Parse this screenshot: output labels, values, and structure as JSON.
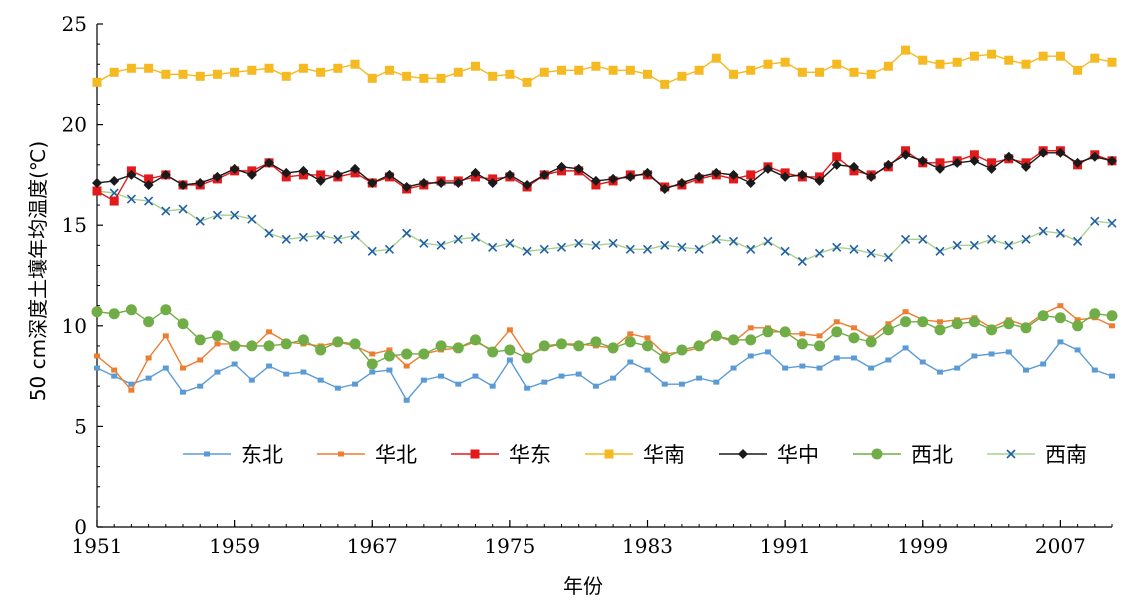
{
  "chart_data": {
    "type": "line",
    "xlabel": "年份",
    "ylabel": "50 cm深度土壤年均温度(℃)",
    "xlim": [
      1951,
      2010
    ],
    "ylim": [
      0,
      25
    ],
    "x_ticks": [
      "1951",
      "1959",
      "1967",
      "1975",
      "1983",
      "1991",
      "1999",
      "2007"
    ],
    "y_ticks": [
      "0",
      "5",
      "10",
      "15",
      "20",
      "25"
    ],
    "grid": false,
    "legend_position": "bottom inside plot",
    "x": [
      1951,
      1952,
      1953,
      1954,
      1955,
      1956,
      1957,
      1958,
      1959,
      1960,
      1961,
      1962,
      1963,
      1964,
      1965,
      1966,
      1967,
      1968,
      1969,
      1970,
      1971,
      1972,
      1973,
      1974,
      1975,
      1976,
      1977,
      1978,
      1979,
      1980,
      1981,
      1982,
      1983,
      1984,
      1985,
      1986,
      1987,
      1988,
      1989,
      1990,
      1991,
      1992,
      1993,
      1994,
      1995,
      1996,
      1997,
      1998,
      1999,
      2000,
      2001,
      2002,
      2003,
      2004,
      2005,
      2006,
      2007,
      2008,
      2009,
      2010
    ],
    "series": [
      {
        "name": "东北",
        "color": "#5b9bd5",
        "marker": "square-small",
        "values": [
          7.9,
          7.5,
          7.1,
          7.4,
          7.9,
          6.7,
          7.0,
          7.7,
          8.1,
          7.3,
          8.0,
          7.6,
          7.7,
          7.3,
          6.9,
          7.1,
          7.7,
          7.8,
          6.3,
          7.3,
          7.5,
          7.1,
          7.5,
          7.0,
          8.3,
          6.9,
          7.2,
          7.5,
          7.6,
          7.0,
          7.4,
          8.2,
          7.8,
          7.1,
          7.1,
          7.4,
          7.2,
          7.9,
          8.5,
          8.7,
          7.9,
          8.0,
          7.9,
          8.4,
          8.4,
          7.9,
          8.3,
          8.9,
          8.2,
          7.7,
          7.9,
          8.5,
          8.6,
          8.7,
          7.8,
          8.1,
          9.2,
          8.8,
          7.8,
          7.5
        ]
      },
      {
        "name": "华北",
        "color": "#ed7d31",
        "marker": "square-small",
        "values": [
          8.5,
          7.8,
          6.8,
          8.4,
          9.5,
          7.9,
          8.3,
          9.1,
          9.1,
          8.9,
          9.7,
          9.2,
          9.1,
          9.0,
          9.2,
          9.0,
          8.6,
          8.8,
          8.0,
          8.6,
          8.8,
          8.9,
          9.2,
          8.8,
          9.8,
          8.5,
          8.9,
          9.1,
          9.1,
          9.0,
          8.9,
          9.6,
          9.4,
          8.6,
          8.7,
          8.9,
          9.5,
          9.2,
          9.9,
          9.9,
          9.6,
          9.6,
          9.5,
          10.2,
          9.9,
          9.4,
          10.1,
          10.7,
          10.3,
          10.2,
          10.3,
          10.4,
          9.9,
          10.3,
          10.0,
          10.6,
          11.0,
          10.3,
          10.4,
          10.0
        ]
      },
      {
        "name": "华东",
        "color": "#e31a1c",
        "marker": "square",
        "values": [
          16.7,
          16.2,
          17.7,
          17.3,
          17.5,
          17.0,
          17.0,
          17.3,
          17.7,
          17.7,
          18.1,
          17.4,
          17.5,
          17.5,
          17.4,
          17.6,
          17.1,
          17.4,
          16.8,
          17.0,
          17.2,
          17.2,
          17.4,
          17.3,
          17.4,
          16.9,
          17.5,
          17.7,
          17.7,
          17.0,
          17.2,
          17.5,
          17.5,
          16.9,
          17.0,
          17.3,
          17.5,
          17.3,
          17.5,
          17.9,
          17.6,
          17.4,
          17.4,
          18.4,
          17.7,
          17.5,
          17.9,
          18.7,
          18.1,
          18.1,
          18.2,
          18.5,
          18.1,
          18.3,
          18.1,
          18.7,
          18.7,
          18.0,
          18.5,
          18.2
        ]
      },
      {
        "name": "华南",
        "color": "#f5b921",
        "marker": "square",
        "values": [
          22.1,
          22.6,
          22.8,
          22.8,
          22.5,
          22.5,
          22.4,
          22.5,
          22.6,
          22.7,
          22.8,
          22.4,
          22.8,
          22.6,
          22.8,
          23.0,
          22.3,
          22.7,
          22.4,
          22.3,
          22.3,
          22.6,
          22.9,
          22.4,
          22.5,
          22.1,
          22.6,
          22.7,
          22.7,
          22.9,
          22.7,
          22.7,
          22.5,
          22.0,
          22.4,
          22.7,
          23.3,
          22.5,
          22.7,
          23.0,
          23.1,
          22.6,
          22.6,
          23.0,
          22.6,
          22.5,
          22.9,
          23.7,
          23.2,
          23.0,
          23.1,
          23.4,
          23.5,
          23.2,
          23.0,
          23.4,
          23.4,
          22.7,
          23.3,
          23.1
        ]
      },
      {
        "name": "华中",
        "color": "#1a1a1a",
        "marker": "diamond",
        "values": [
          17.1,
          17.2,
          17.5,
          17.0,
          17.5,
          17.0,
          17.1,
          17.4,
          17.8,
          17.5,
          18.1,
          17.6,
          17.7,
          17.2,
          17.5,
          17.8,
          17.1,
          17.5,
          16.9,
          17.1,
          17.1,
          17.1,
          17.6,
          17.1,
          17.5,
          17.0,
          17.5,
          17.9,
          17.8,
          17.2,
          17.3,
          17.4,
          17.6,
          16.8,
          17.1,
          17.4,
          17.6,
          17.5,
          17.1,
          17.8,
          17.4,
          17.5,
          17.2,
          18.0,
          17.9,
          17.4,
          18.0,
          18.5,
          18.2,
          17.8,
          18.1,
          18.2,
          17.8,
          18.4,
          17.9,
          18.6,
          18.6,
          18.1,
          18.4,
          18.2
        ]
      },
      {
        "name": "西北",
        "color": "#70ad47",
        "marker": "circle",
        "values": [
          10.7,
          10.6,
          10.8,
          10.2,
          10.8,
          10.1,
          9.3,
          9.5,
          9.0,
          9.0,
          9.0,
          9.1,
          9.3,
          8.8,
          9.2,
          9.1,
          8.1,
          8.5,
          8.6,
          8.6,
          9.0,
          8.9,
          9.3,
          8.7,
          8.8,
          8.4,
          9.0,
          9.1,
          9.0,
          9.2,
          8.9,
          9.2,
          9.0,
          8.4,
          8.8,
          9.0,
          9.5,
          9.3,
          9.3,
          9.7,
          9.7,
          9.1,
          9.0,
          9.7,
          9.4,
          9.2,
          9.8,
          10.2,
          10.2,
          9.8,
          10.1,
          10.2,
          9.8,
          10.1,
          9.9,
          10.5,
          10.4,
          10.0,
          10.6,
          10.5
        ]
      },
      {
        "name": "西南",
        "color": "#1f5fa6",
        "marker": "x",
        "line_color": "#a9d18e",
        "values": [
          16.7,
          16.6,
          16.3,
          16.2,
          15.7,
          15.8,
          15.2,
          15.5,
          15.5,
          15.3,
          14.6,
          14.3,
          14.4,
          14.5,
          14.3,
          14.5,
          13.7,
          13.8,
          14.6,
          14.1,
          14.0,
          14.3,
          14.4,
          13.9,
          14.1,
          13.7,
          13.8,
          13.9,
          14.1,
          14.0,
          14.1,
          13.8,
          13.8,
          14.0,
          13.9,
          13.8,
          14.3,
          14.2,
          13.8,
          14.2,
          13.7,
          13.2,
          13.6,
          13.9,
          13.8,
          13.6,
          13.4,
          14.3,
          14.3,
          13.7,
          14.0,
          14.0,
          14.3,
          14.0,
          14.3,
          14.7,
          14.6,
          14.2,
          15.2,
          15.1
        ]
      }
    ]
  }
}
